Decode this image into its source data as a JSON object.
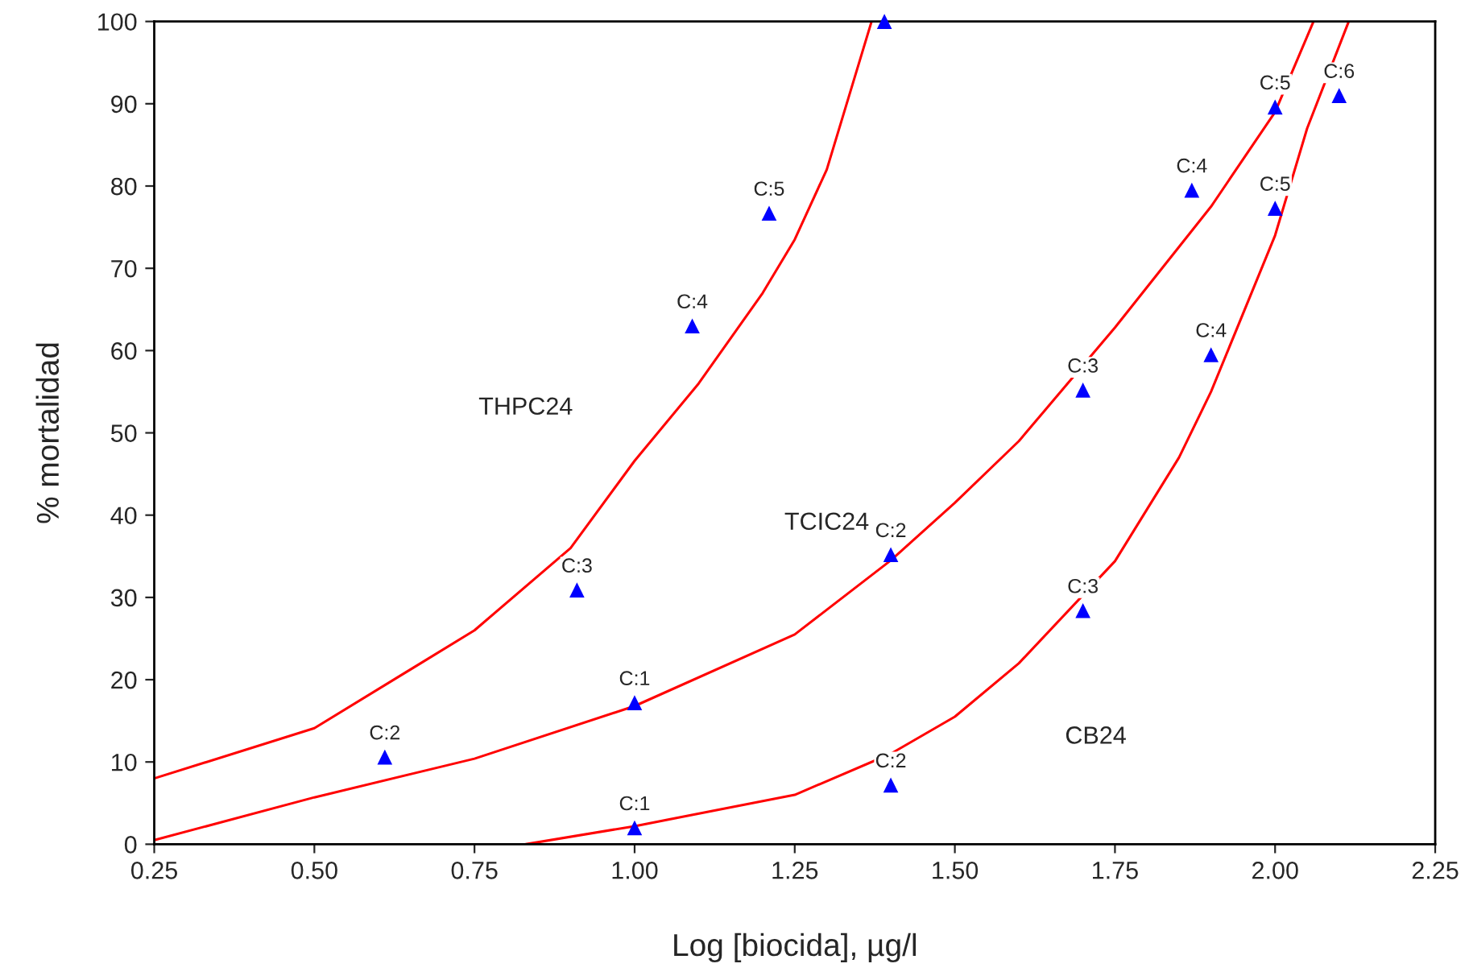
{
  "chart_data": {
    "type": "scatter",
    "xlabel": "Log [biocida], µg/l",
    "ylabel": "% mortalidad",
    "xlim": [
      0.25,
      2.25
    ],
    "xticks": [
      {
        "value": 0.25,
        "label": "0.25"
      },
      {
        "value": 0.5,
        "label": "0.50"
      },
      {
        "value": 0.75,
        "label": "0.75"
      },
      {
        "value": 1.0,
        "label": "1.00"
      },
      {
        "value": 1.25,
        "label": "1.25"
      },
      {
        "value": 1.5,
        "label": "1.50"
      },
      {
        "value": 1.75,
        "label": "1.75"
      },
      {
        "value": 2.0,
        "label": "2.00"
      },
      {
        "value": 2.25,
        "label": "2.25"
      }
    ],
    "ylim": [
      0,
      100
    ],
    "yticks": [
      0,
      10,
      20,
      30,
      40,
      50,
      60,
      70,
      80,
      90,
      100
    ],
    "grid": false,
    "legend": false,
    "series": [
      {
        "type": "line",
        "color": "#ff0000",
        "marker": "none",
        "x": [
          0.25,
          0.5,
          0.75,
          0.9,
          1.0,
          1.1,
          1.2,
          1.25,
          1.3,
          1.37
        ],
        "values": [
          8,
          14.1,
          26,
          36,
          46.6,
          56,
          67,
          73.5,
          82,
          100
        ]
      },
      {
        "type": "line",
        "color": "#ff0000",
        "marker": "none",
        "x": [
          0.25,
          0.5,
          0.75,
          1.0,
          1.25,
          1.4,
          1.5,
          1.6,
          1.75,
          1.9,
          2.0,
          2.06
        ],
        "values": [
          0.5,
          5.7,
          10.4,
          16.8,
          25.5,
          34.5,
          41.5,
          49,
          62.8,
          77.5,
          89,
          100
        ]
      },
      {
        "type": "line",
        "color": "#ff0000",
        "marker": "none",
        "x": [
          0.83,
          1.0,
          1.25,
          1.4,
          1.5,
          1.6,
          1.75,
          1.85,
          1.9,
          2.0,
          2.05,
          2.115
        ],
        "values": [
          0,
          2.2,
          6.0,
          11,
          15.5,
          22,
          34.4,
          47,
          55,
          74,
          87,
          100
        ]
      },
      {
        "color": "#0000ff",
        "marker": "triangle",
        "x": [
          0.61,
          0.91,
          1.09,
          1.21,
          1.39
        ],
        "values": [
          10.6,
          30.9,
          63.0,
          76.7,
          100
        ]
      },
      {
        "color": "#0000ff",
        "marker": "triangle",
        "x": [
          1.0,
          1.4,
          1.7,
          1.87,
          2.0
        ],
        "values": [
          17.2,
          35.2,
          55.2,
          79.5,
          89.6
        ]
      },
      {
        "color": "#0000ff",
        "marker": "triangle",
        "x": [
          1.0,
          1.4,
          1.7,
          1.9,
          2.0,
          2.1
        ],
        "values": [
          2.0,
          7.2,
          28.4,
          59.5,
          77.3,
          91.0
        ]
      }
    ],
    "annotations": [
      {
        "text": "C:2",
        "x": 0.61,
        "y": 10.6
      },
      {
        "text": "C:3",
        "x": 0.91,
        "y": 30.9
      },
      {
        "text": "C:4",
        "x": 1.09,
        "y": 63.0
      },
      {
        "text": "C:5",
        "x": 1.21,
        "y": 76.7
      },
      {
        "text": "C:1",
        "x": 1.0,
        "y": 17.2
      },
      {
        "text": "C:2",
        "x": 1.4,
        "y": 35.2
      },
      {
        "text": "C:3",
        "x": 1.7,
        "y": 55.2
      },
      {
        "text": "C:4",
        "x": 1.87,
        "y": 79.5
      },
      {
        "text": "C:5",
        "x": 2.0,
        "y": 89.6
      },
      {
        "text": "C:1",
        "x": 1.0,
        "y": 2.0
      },
      {
        "text": "C:2",
        "x": 1.4,
        "y": 7.2
      },
      {
        "text": "C:3",
        "x": 1.7,
        "y": 28.4
      },
      {
        "text": "C:4",
        "x": 1.9,
        "y": 59.5
      },
      {
        "text": "C:5",
        "x": 2.0,
        "y": 77.3
      },
      {
        "text": "C:6",
        "x": 2.1,
        "y": 91.0
      },
      "THPC24",
      "TCIC24",
      "CB24"
    ]
  }
}
